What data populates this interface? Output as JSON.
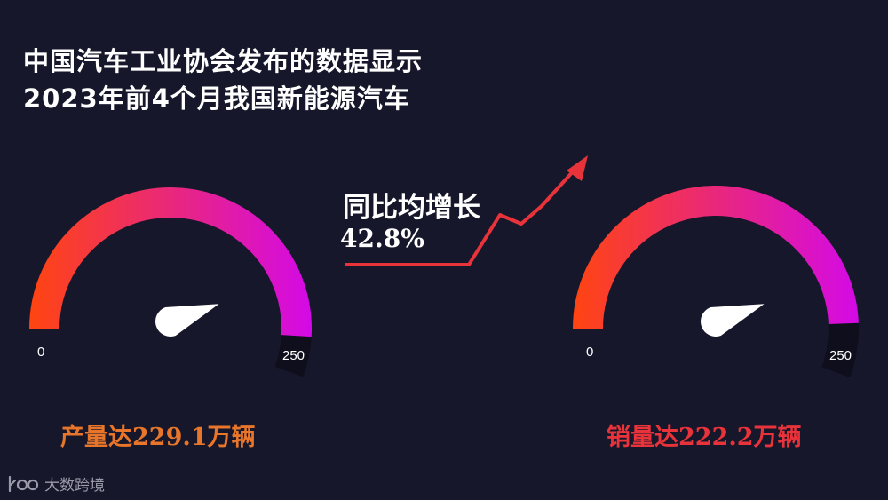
{
  "title_lines": [
    "中国汽车工业协会发布的数据显示",
    "2023年前4个月我国新能源汽车"
  ],
  "growth": {
    "label": "同比均增长",
    "value": "42.8%"
  },
  "colors": {
    "background": "#17172b",
    "gauge_start": "#ff4510",
    "gauge_end": "#d40ae6",
    "gauge_track": "#0e0e1c",
    "arrow": "#e8333a",
    "production_caption": "#e8762a",
    "sales_caption": "#e8333a"
  },
  "chart_data": [
    {
      "type": "gauge",
      "min": 0,
      "max": 250,
      "value": 229.1,
      "unit": "万辆",
      "min_label": "0",
      "max_label": "250",
      "caption": "产量达229.1万辆"
    },
    {
      "type": "gauge",
      "min": 0,
      "max": 250,
      "value": 222.2,
      "unit": "万辆",
      "min_label": "0",
      "max_label": "250",
      "caption": "销量达222.2万辆"
    }
  ],
  "watermark": {
    "text": "大数跨境",
    "icon": "brand-logo-icon"
  }
}
